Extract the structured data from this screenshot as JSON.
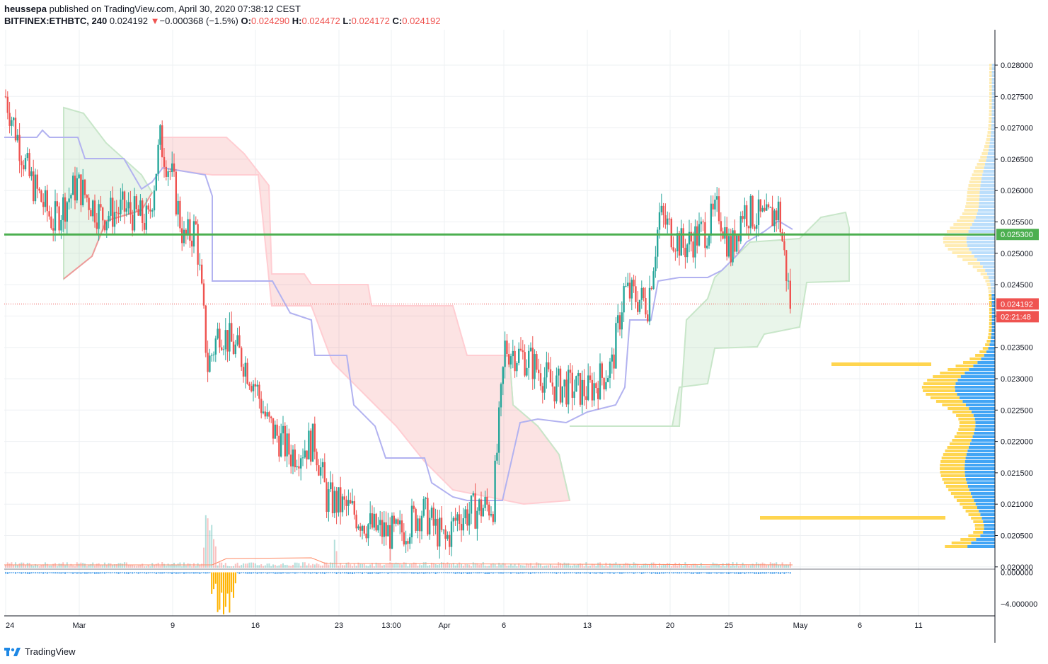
{
  "header": {
    "author": "heussepa",
    "published_text": " published on TradingView.com, April 30, 2020 07:38:12 CEST",
    "symbol": "BITFINEX:ETHBTC, 240",
    "last": "0.024192",
    "change_arrow": "▼",
    "change": "−0.000368 (−1.5%)",
    "open_label": "O:",
    "open": "0.024290",
    "high_label": "H:",
    "high": "0.024472",
    "low_label": "L:",
    "low": "0.024172",
    "close_label": "C:",
    "close": "0.024192"
  },
  "footer": {
    "brand": "TradingView",
    "logo_icon": "tradingview-logo-icon"
  },
  "colors": {
    "up": "#26a69a",
    "down": "#ef5350",
    "level": "#4caf50",
    "cloud_bull": "#c8e6c9",
    "cloud_bear": "#ffcdd2",
    "kijun": "#b2b2f0",
    "vp_up": "#42a5f5",
    "vp_down": "#ffd54f"
  },
  "chart_data": {
    "type": "candlestick",
    "title": "BITFINEX:ETHBTC, 240",
    "x_axis": {
      "tick_labels": [
        "24",
        "Mar",
        "9",
        "16",
        "23",
        "13:00",
        "Apr",
        "6",
        "13",
        "20",
        "25",
        "May",
        "6",
        "11"
      ]
    },
    "y_axis": {
      "range": [
        0.0198,
        0.0282
      ],
      "tick_labels": [
        "0.028000",
        "0.027500",
        "0.027000",
        "0.026500",
        "0.026000",
        "0.025500",
        "0.025000",
        "0.024500",
        "0.024000",
        "0.023500",
        "0.023000",
        "0.022500",
        "0.022000",
        "0.021500",
        "0.021000",
        "0.020500",
        "0.020000"
      ]
    },
    "horizontal_level": {
      "value": 0.0253,
      "label": "0.025300"
    },
    "last_price": {
      "value": 0.024192,
      "label": "0.024192",
      "countdown": "02:21:48"
    },
    "close_path_points": [
      [
        "Feb 24",
        0.0275
      ],
      [
        "Feb 26",
        0.0262
      ],
      [
        "Feb 28",
        0.0255
      ],
      [
        "Mar 1",
        0.0261
      ],
      [
        "Mar 3",
        0.0256
      ],
      [
        "Mar 5",
        0.0257
      ],
      [
        "Mar 7",
        0.0255
      ],
      [
        "Mar 8",
        0.0268
      ],
      [
        "Mar 9",
        0.0262
      ],
      [
        "Mar 10",
        0.0252
      ],
      [
        "Mar 11",
        0.0254
      ],
      [
        "Mar 12",
        0.0232
      ],
      [
        "Mar 13",
        0.0238
      ],
      [
        "Mar 15",
        0.0233
      ],
      [
        "Mar 16",
        0.0229
      ],
      [
        "Mar 17",
        0.0223
      ],
      [
        "Mar 19",
        0.0218
      ],
      [
        "Mar 21",
        0.022
      ],
      [
        "Mar 22",
        0.0211
      ],
      [
        "Mar 24",
        0.0209
      ],
      [
        "Mar 26",
        0.0206
      ],
      [
        "Mar 28",
        0.0205
      ],
      [
        "Mar 30",
        0.0209
      ],
      [
        "Apr 1",
        0.0204
      ],
      [
        "Apr 2",
        0.0208
      ],
      [
        "Apr 5",
        0.021
      ],
      [
        "Apr 6",
        0.0235
      ],
      [
        "Apr 8",
        0.0233
      ],
      [
        "Apr 10",
        0.0229
      ],
      [
        "Apr 13",
        0.0228
      ],
      [
        "Apr 15",
        0.0232
      ],
      [
        "Apr 16",
        0.0244
      ],
      [
        "Apr 18",
        0.0242
      ],
      [
        "Apr 19",
        0.0256
      ],
      [
        "Apr 21",
        0.0251
      ],
      [
        "Apr 23",
        0.0254
      ],
      [
        "Apr 24",
        0.0257
      ],
      [
        "Apr 25",
        0.025
      ],
      [
        "Apr 26",
        0.0257
      ],
      [
        "Apr 28",
        0.0255
      ],
      [
        "Apr 29",
        0.0257
      ],
      [
        "Apr 30",
        0.0242
      ]
    ],
    "indicator_pane": {
      "tick_labels": [
        "0.000000",
        "−4.000000"
      ],
      "range": [
        -5.5,
        0.4
      ]
    }
  }
}
